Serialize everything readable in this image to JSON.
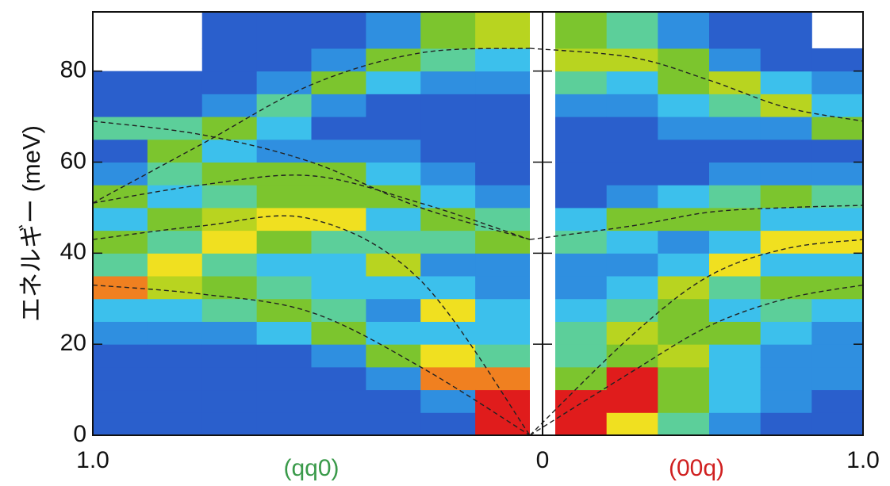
{
  "chart_data": {
    "type": "heatmap",
    "ylabel": "エネルギー (meV)",
    "xlim": [
      -1,
      1
    ],
    "xticks": [
      {
        "value": -1,
        "label": "1.0"
      },
      {
        "value": 0,
        "label": "0"
      },
      {
        "value": 1,
        "label": "1.0"
      }
    ],
    "ylim": [
      0,
      93
    ],
    "yticks": [
      0,
      20,
      40,
      60,
      80
    ],
    "zlim": [
      0,
      10
    ],
    "colormap": [
      "#5b3f9e",
      "#3a48b0",
      "#2a5fcc",
      "#2f8fe0",
      "#3cc0ec",
      "#5ccf9a",
      "#7cc52e",
      "#b8d420",
      "#f0e020",
      "#f08020",
      "#e01c1c"
    ],
    "y_edges": [
      0,
      5,
      10,
      15,
      20,
      25,
      30,
      35,
      40,
      45,
      50,
      55,
      60,
      65,
      70,
      75,
      80,
      85,
      93
    ],
    "panels": [
      {
        "label": "(qq0)",
        "label_color": "#3a9a4a",
        "x_edges": [
          -1,
          -0.875,
          -0.75,
          -0.625,
          -0.5,
          -0.375,
          -0.25,
          -0.125,
          0
        ],
        "columns": [
          [
            2,
            2,
            2,
            2,
            3,
            4,
            9,
            5,
            6,
            4,
            6,
            3,
            2,
            5,
            2,
            2,
            null,
            null
          ],
          [
            2,
            2,
            2,
            2,
            3,
            4,
            7,
            8,
            5,
            6,
            4,
            5,
            6,
            5,
            2,
            2,
            null,
            null
          ],
          [
            2,
            2,
            2,
            2,
            3,
            5,
            6,
            5,
            8,
            7,
            5,
            6,
            4,
            6,
            3,
            2,
            2,
            2
          ],
          [
            2,
            2,
            2,
            2,
            4,
            6,
            5,
            4,
            6,
            8,
            6,
            6,
            3,
            4,
            5,
            3,
            2,
            2
          ],
          [
            2,
            2,
            2,
            3,
            6,
            5,
            4,
            4,
            5,
            8,
            6,
            6,
            3,
            2,
            3,
            6,
            3,
            2
          ],
          [
            2,
            2,
            3,
            6,
            4,
            3,
            4,
            7,
            5,
            4,
            6,
            4,
            3,
            2,
            2,
            4,
            6,
            3
          ],
          [
            2,
            3,
            9,
            8,
            4,
            8,
            4,
            3,
            5,
            6,
            4,
            3,
            2,
            2,
            2,
            3,
            5,
            6
          ],
          [
            10,
            10,
            9,
            5,
            4,
            4,
            3,
            3,
            6,
            5,
            3,
            2,
            2,
            2,
            2,
            3,
            4,
            7
          ]
        ]
      },
      {
        "label": "(00q)",
        "label_color": "#d02020",
        "x_edges": [
          0,
          0.1667,
          0.3333,
          0.5,
          0.6667,
          0.8333,
          1
        ],
        "columns": [
          [
            10,
            10,
            6,
            5,
            5,
            4,
            3,
            3,
            5,
            4,
            2,
            2,
            2,
            2,
            3,
            5,
            7,
            6
          ],
          [
            8,
            10,
            10,
            6,
            7,
            5,
            4,
            3,
            4,
            6,
            3,
            2,
            2,
            2,
            3,
            4,
            7,
            5
          ],
          [
            5,
            6,
            6,
            7,
            6,
            6,
            7,
            4,
            3,
            6,
            4,
            2,
            2,
            3,
            4,
            6,
            6,
            3
          ],
          [
            3,
            4,
            4,
            4,
            6,
            4,
            5,
            8,
            4,
            6,
            5,
            3,
            2,
            3,
            5,
            7,
            3,
            2
          ],
          [
            2,
            3,
            3,
            3,
            4,
            5,
            6,
            4,
            8,
            4,
            6,
            3,
            2,
            3,
            7,
            4,
            2,
            2
          ],
          [
            2,
            2,
            3,
            3,
            3,
            4,
            6,
            4,
            8,
            4,
            5,
            3,
            2,
            6,
            4,
            3,
            2,
            null
          ]
        ]
      }
    ],
    "line_style": "dashed",
    "series": [
      {
        "color": "#222222",
        "x": [
          -1,
          -0.75,
          -0.5,
          -0.25,
          0
        ],
        "values": [
          51,
          64,
          77,
          84,
          85
        ]
      },
      {
        "color": "#222222",
        "x": [
          -1,
          -0.75,
          -0.5,
          -0.25,
          0
        ],
        "values": [
          69,
          66,
          60,
          50,
          43
        ]
      },
      {
        "color": "#222222",
        "x": [
          -1,
          -0.75,
          -0.5,
          -0.25,
          0
        ],
        "values": [
          51,
          55,
          57,
          51,
          43
        ]
      },
      {
        "color": "#222222",
        "x": [
          -1,
          -0.75,
          -0.5,
          -0.25,
          0
        ],
        "values": [
          43,
          46,
          47.5,
          34,
          0
        ]
      },
      {
        "color": "#222222",
        "x": [
          -1,
          -0.75,
          -0.5,
          -0.25,
          0
        ],
        "values": [
          33,
          31,
          27,
          15,
          0
        ]
      },
      {
        "color": "#222222",
        "x": [
          0,
          0.25,
          0.5,
          0.75,
          1
        ],
        "values": [
          85,
          83,
          78,
          72,
          69
        ]
      },
      {
        "color": "#222222",
        "x": [
          0,
          0.25,
          0.5,
          0.75,
          1
        ],
        "values": [
          43,
          46,
          49,
          50,
          50.5
        ]
      },
      {
        "color": "#222222",
        "x": [
          0,
          0.25,
          0.5,
          0.75,
          1
        ],
        "values": [
          0,
          22,
          35,
          41,
          43
        ]
      },
      {
        "color": "#222222",
        "x": [
          0,
          0.25,
          0.5,
          0.75,
          1
        ],
        "values": [
          0,
          14,
          24,
          30,
          33
        ]
      }
    ]
  }
}
